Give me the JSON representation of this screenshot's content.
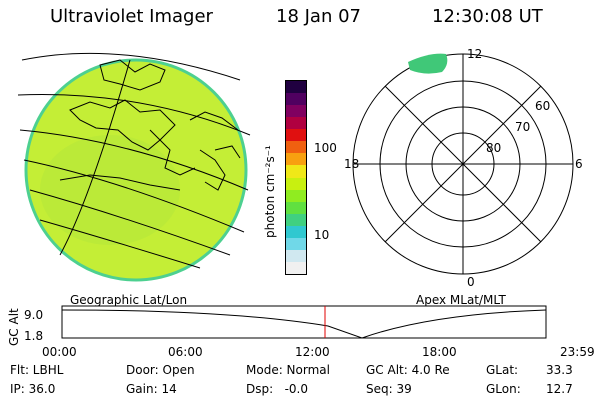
{
  "header": {
    "instrument": "Ultraviolet Imager",
    "date": "18 Jan 07",
    "time": "12:30:08 UT"
  },
  "colorbar": {
    "unit_label": "photon cm⁻²s⁻¹",
    "tick_labels": [
      "100",
      "10"
    ],
    "colors": [
      "#f0f0f0",
      "#d0e8f0",
      "#70d8e8",
      "#30c8d0",
      "#40d080",
      "#60e040",
      "#90ec20",
      "#c8f010",
      "#f0e818",
      "#f8a010",
      "#f06010",
      "#e01010",
      "#b00040",
      "#800060",
      "#500060",
      "#200040"
    ]
  },
  "geo_map": {
    "label": "Geographic Lat/Lon",
    "fill_color": "#c4ee36",
    "edge_color": "#4dd090"
  },
  "polar_plot": {
    "label": "Apex MLat/MLT",
    "mlt_labels": {
      "top": "12",
      "bottom": "0",
      "left": "18",
      "right": "6"
    },
    "lat_labels": [
      "60",
      "70",
      "80"
    ],
    "blob_color": "#40c878"
  },
  "orbit_plot": {
    "y_axis_label": "GC Alt",
    "y_ticks": [
      "9.0",
      "1.8"
    ],
    "x_ticks": [
      "00:00",
      "06:00",
      "12:00",
      "18:00",
      "23:59"
    ],
    "current_marker_color": "#e00000"
  },
  "status": {
    "flt": "Flt: LBHL",
    "ip": "IP: 36.0",
    "door": "Door: Open",
    "gain": "Gain: 14",
    "mode": "Mode: Normal",
    "dsp": "Dsp:   -0.0",
    "gc_alt": "GC Alt: 4.0 Re",
    "seq": "Seq: 39",
    "glat_label": "GLat:",
    "glat_value": "33.3",
    "glon_label": "GLon:",
    "glon_value": "12.7"
  }
}
